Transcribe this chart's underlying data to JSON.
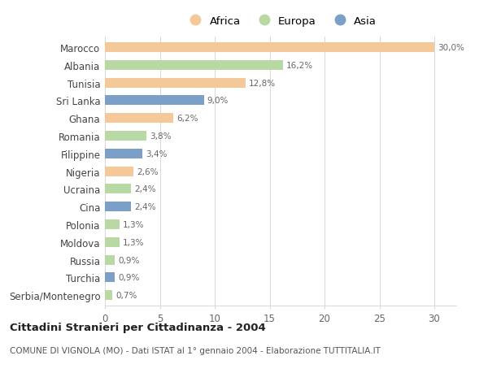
{
  "categories": [
    "Marocco",
    "Albania",
    "Tunisia",
    "Sri Lanka",
    "Ghana",
    "Romania",
    "Filippine",
    "Nigeria",
    "Ucraina",
    "Cina",
    "Polonia",
    "Moldova",
    "Russia",
    "Turchia",
    "Serbia/Montenegro"
  ],
  "values": [
    30.0,
    16.2,
    12.8,
    9.0,
    6.2,
    3.8,
    3.4,
    2.6,
    2.4,
    2.4,
    1.3,
    1.3,
    0.9,
    0.9,
    0.7
  ],
  "continents": [
    "Africa",
    "Europa",
    "Africa",
    "Asia",
    "Africa",
    "Europa",
    "Asia",
    "Africa",
    "Europa",
    "Asia",
    "Europa",
    "Europa",
    "Europa",
    "Asia",
    "Europa"
  ],
  "colors": {
    "Africa": "#F5C89A",
    "Europa": "#B8D9A4",
    "Asia": "#7B9FC7"
  },
  "africa_color": "#F5C89A",
  "europa_color": "#B8D9A4",
  "asia_color": "#7B9FC7",
  "title": "Cittadini Stranieri per Cittadinanza - 2004",
  "subtitle": "COMUNE DI VIGNOLA (MO) - Dati ISTAT al 1° gennaio 2004 - Elaborazione TUTTITALIA.IT",
  "xlim": [
    0,
    32
  ],
  "xticks": [
    0,
    5,
    10,
    15,
    20,
    25,
    30
  ],
  "bg_color": "#ffffff",
  "grid_color": "#d8d8d8",
  "bar_height": 0.55
}
